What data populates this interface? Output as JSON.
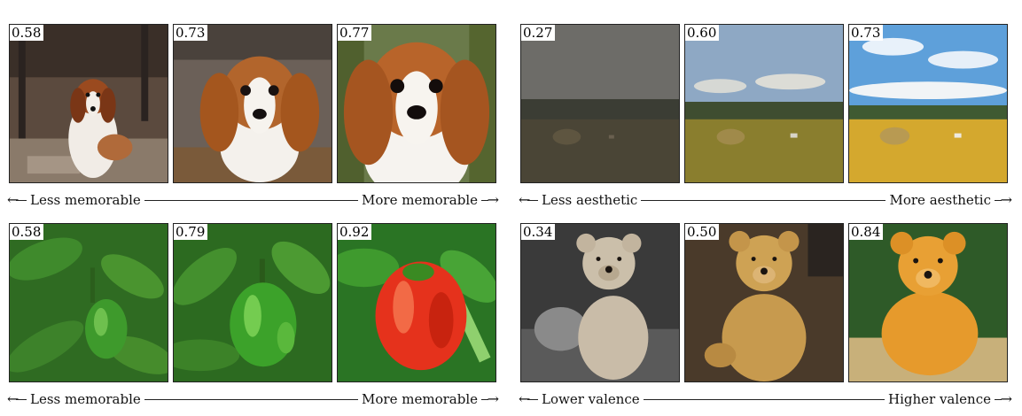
{
  "panels": {
    "dogs": {
      "scores": [
        "0.58",
        "0.73",
        "0.77"
      ],
      "axis_left": "Less memorable",
      "axis_right": "More memorable"
    },
    "fields": {
      "scores": [
        "0.27",
        "0.60",
        "0.73"
      ],
      "axis_left": "Less aesthetic",
      "axis_right": "More aesthetic"
    },
    "peppers": {
      "scores": [
        "0.58",
        "0.79",
        "0.92"
      ],
      "axis_left": "Less memorable",
      "axis_right": "More memorable"
    },
    "bears": {
      "scores": [
        "0.34",
        "0.50",
        "0.84"
      ],
      "axis_left": "Lower valence",
      "axis_right": "Higher valence"
    }
  },
  "arrows": {
    "left": "←",
    "right": "→"
  }
}
